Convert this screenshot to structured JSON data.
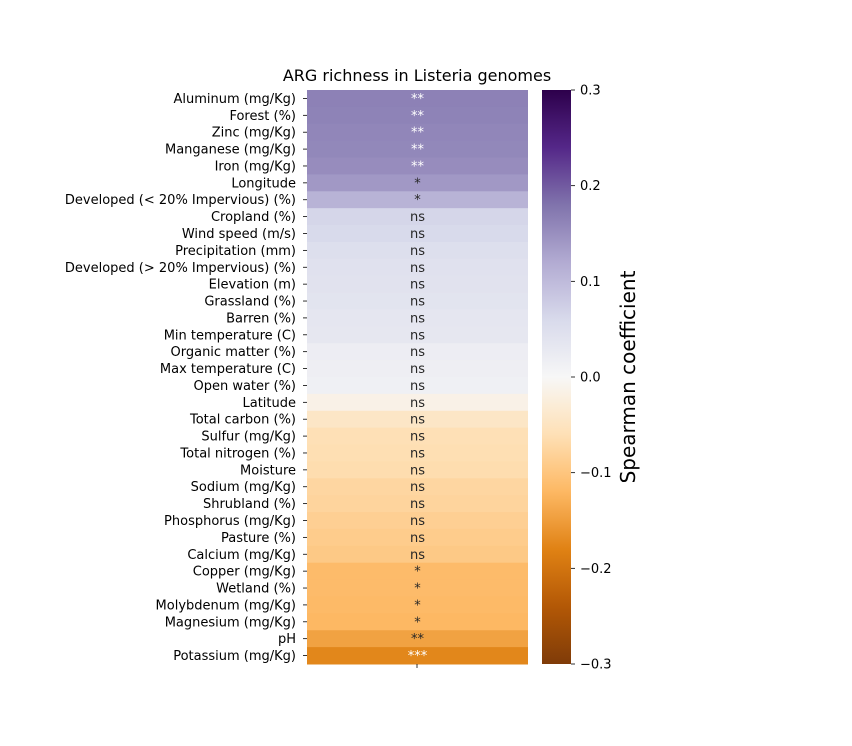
{
  "chart_data": {
    "type": "heatmap",
    "title": "ARG richness in Listeria genomes",
    "colorbar_label": "Spearman coefficient",
    "colorbar_ticks": [
      "0.3",
      "0.2",
      "0.1",
      "0.0",
      "−0.1",
      "−0.2",
      "−0.3"
    ],
    "colorbar_tick_values": [
      0.3,
      0.2,
      0.1,
      0.0,
      -0.1,
      -0.2,
      -0.3
    ],
    "vmin": -0.3,
    "vmax": 0.3,
    "colormap": "PuOr",
    "rows": [
      {
        "label": "Aluminum (mg/Kg)",
        "value": 0.165,
        "sig": "**"
      },
      {
        "label": "Forest (%)",
        "value": 0.163,
        "sig": "**"
      },
      {
        "label": "Zinc (mg/Kg)",
        "value": 0.16,
        "sig": "**"
      },
      {
        "label": "Manganese (mg/Kg)",
        "value": 0.158,
        "sig": "**"
      },
      {
        "label": "Iron (mg/Kg)",
        "value": 0.153,
        "sig": "**"
      },
      {
        "label": "Longitude",
        "value": 0.14,
        "sig": "*"
      },
      {
        "label": "Developed (< 20% Impervious) (%)",
        "value": 0.11,
        "sig": "*"
      },
      {
        "label": "Cropland (%)",
        "value": 0.065,
        "sig": "ns"
      },
      {
        "label": "Wind speed (m/s)",
        "value": 0.06,
        "sig": "ns"
      },
      {
        "label": "Precipitation (mm)",
        "value": 0.05,
        "sig": "ns"
      },
      {
        "label": "Developed (> 20% Impervious) (%)",
        "value": 0.045,
        "sig": "ns"
      },
      {
        "label": "Elevation (m)",
        "value": 0.043,
        "sig": "ns"
      },
      {
        "label": "Grassland (%)",
        "value": 0.04,
        "sig": "ns"
      },
      {
        "label": "Barren (%)",
        "value": 0.035,
        "sig": "ns"
      },
      {
        "label": "Min temperature (C)",
        "value": 0.033,
        "sig": "ns"
      },
      {
        "label": "Organic matter (%)",
        "value": 0.02,
        "sig": "ns"
      },
      {
        "label": "Max temperature (C)",
        "value": 0.018,
        "sig": "ns"
      },
      {
        "label": "Open water (%)",
        "value": 0.015,
        "sig": "ns"
      },
      {
        "label": "Latitude",
        "value": -0.015,
        "sig": "ns"
      },
      {
        "label": "Total carbon (%)",
        "value": -0.045,
        "sig": "ns"
      },
      {
        "label": "Sulfur (mg/Kg)",
        "value": -0.06,
        "sig": "ns"
      },
      {
        "label": "Total nitrogen (%)",
        "value": -0.062,
        "sig": "ns"
      },
      {
        "label": "Moisture",
        "value": -0.065,
        "sig": "ns"
      },
      {
        "label": "Sodium (mg/Kg)",
        "value": -0.075,
        "sig": "ns"
      },
      {
        "label": "Shrubland (%)",
        "value": -0.078,
        "sig": "ns"
      },
      {
        "label": "Phosphorus (mg/Kg)",
        "value": -0.085,
        "sig": "ns"
      },
      {
        "label": "Pasture (%)",
        "value": -0.09,
        "sig": "ns"
      },
      {
        "label": "Calcium (mg/Kg)",
        "value": -0.095,
        "sig": "ns"
      },
      {
        "label": "Copper (mg/Kg)",
        "value": -0.115,
        "sig": "*"
      },
      {
        "label": "Wetland (%)",
        "value": -0.115,
        "sig": "*"
      },
      {
        "label": "Molybdenum (mg/Kg)",
        "value": -0.117,
        "sig": "*"
      },
      {
        "label": "Magnesium (mg/Kg)",
        "value": -0.12,
        "sig": "*"
      },
      {
        "label": "pH",
        "value": -0.145,
        "sig": "**"
      },
      {
        "label": "Potassium (mg/Kg)",
        "value": -0.175,
        "sig": "***"
      }
    ]
  }
}
